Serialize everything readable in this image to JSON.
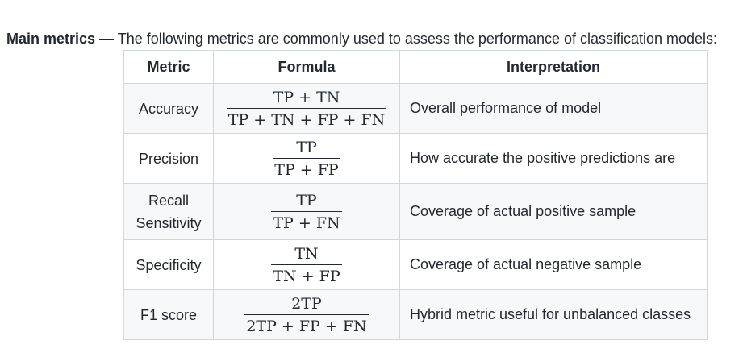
{
  "intro": {
    "heading": "Main metrics",
    "text": " — The following metrics are commonly used to assess the performance of classification models:"
  },
  "table": {
    "headers": {
      "metric": "Metric",
      "formula": "Formula",
      "interpretation": "Interpretation"
    },
    "rows": [
      {
        "metric": [
          "Accuracy"
        ],
        "numerator": "TP + TN",
        "denominator": "TP + TN + FP + FN",
        "interpretation": "Overall performance of model"
      },
      {
        "metric": [
          "Precision"
        ],
        "numerator": "TP",
        "denominator": "TP + FP",
        "interpretation": "How accurate the positive predictions are"
      },
      {
        "metric": [
          "Recall",
          "Sensitivity"
        ],
        "numerator": "TP",
        "denominator": "TP + FN",
        "interpretation": "Coverage of actual positive sample"
      },
      {
        "metric": [
          "Specificity"
        ],
        "numerator": "TN",
        "denominator": "TN + FP",
        "interpretation": "Coverage of actual negative sample"
      },
      {
        "metric": [
          "F1 score"
        ],
        "numerator": "2TP",
        "denominator": "2TP + FP + FN",
        "interpretation": "Hybrid metric useful for unbalanced classes"
      }
    ]
  }
}
